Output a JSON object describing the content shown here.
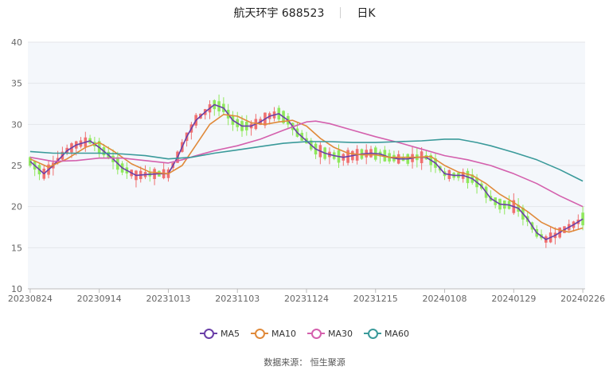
{
  "header": {
    "name_code": "航天环宇 688523",
    "period": "日K"
  },
  "source": "数据来源：  恒生聚源",
  "colors": {
    "up": "#f07070",
    "down": "#8fe85c",
    "ma5": "#6a3fa8",
    "ma10": "#e08a3a",
    "ma30": "#d460ad",
    "ma60": "#3a9a9a",
    "plot_bg": "#f4f7fb",
    "grid": "#e3e6ea"
  },
  "chart_data": {
    "type": "candlestick",
    "title": "航天环宇 688523 日K",
    "ylim": [
      10,
      40
    ],
    "yticks": [
      10,
      15,
      20,
      25,
      30,
      35,
      40
    ],
    "xticks": [
      "20230824",
      "20230914",
      "20231013",
      "20231103",
      "20231124",
      "20231215",
      "20240108",
      "20240129",
      "20240226"
    ],
    "xtick_index": [
      0,
      15,
      30,
      45,
      60,
      75,
      90,
      105,
      120
    ],
    "n_points": 121,
    "series": [
      {
        "name": "MA5",
        "key": "ma5",
        "points": [
          [
            0,
            25.5
          ],
          [
            3,
            24.0
          ],
          [
            5,
            25.0
          ],
          [
            8,
            26.8
          ],
          [
            10,
            27.5
          ],
          [
            13,
            28.0
          ],
          [
            15,
            27.2
          ],
          [
            18,
            25.8
          ],
          [
            20,
            24.7
          ],
          [
            23,
            23.8
          ],
          [
            25,
            23.9
          ],
          [
            28,
            24.0
          ],
          [
            30,
            24.0
          ],
          [
            32,
            26.0
          ],
          [
            34,
            28.5
          ],
          [
            36,
            30.5
          ],
          [
            38,
            31.5
          ],
          [
            40,
            32.4
          ],
          [
            42,
            32.0
          ],
          [
            44,
            30.5
          ],
          [
            46,
            29.8
          ],
          [
            48,
            29.8
          ],
          [
            50,
            30.3
          ],
          [
            52,
            31.0
          ],
          [
            54,
            31.3
          ],
          [
            56,
            30.5
          ],
          [
            58,
            29.0
          ],
          [
            60,
            28.0
          ],
          [
            62,
            27.0
          ],
          [
            64,
            26.5
          ],
          [
            66,
            26.2
          ],
          [
            68,
            26.0
          ],
          [
            70,
            26.2
          ],
          [
            72,
            26.4
          ],
          [
            74,
            26.5
          ],
          [
            76,
            26.4
          ],
          [
            78,
            26.0
          ],
          [
            80,
            25.8
          ],
          [
            82,
            25.8
          ],
          [
            84,
            26.0
          ],
          [
            86,
            26.0
          ],
          [
            88,
            25.3
          ],
          [
            90,
            24.0
          ],
          [
            92,
            23.8
          ],
          [
            94,
            23.8
          ],
          [
            96,
            23.4
          ],
          [
            98,
            22.5
          ],
          [
            100,
            21.0
          ],
          [
            102,
            20.3
          ],
          [
            104,
            20.2
          ],
          [
            106,
            19.8
          ],
          [
            108,
            18.5
          ],
          [
            110,
            16.8
          ],
          [
            112,
            16.0
          ],
          [
            114,
            16.5
          ],
          [
            116,
            17.2
          ],
          [
            118,
            17.8
          ],
          [
            120,
            18.5
          ]
        ]
      },
      {
        "name": "MA10",
        "key": "ma10",
        "points": [
          [
            0,
            25.8
          ],
          [
            4,
            24.8
          ],
          [
            8,
            25.8
          ],
          [
            12,
            27.2
          ],
          [
            15,
            27.8
          ],
          [
            18,
            26.8
          ],
          [
            22,
            25.2
          ],
          [
            26,
            24.2
          ],
          [
            30,
            24.0
          ],
          [
            33,
            25.0
          ],
          [
            36,
            27.5
          ],
          [
            39,
            30.0
          ],
          [
            42,
            31.2
          ],
          [
            45,
            31.0
          ],
          [
            48,
            30.2
          ],
          [
            51,
            30.0
          ],
          [
            54,
            30.3
          ],
          [
            57,
            30.5
          ],
          [
            60,
            29.8
          ],
          [
            63,
            28.3
          ],
          [
            66,
            27.2
          ],
          [
            69,
            26.5
          ],
          [
            72,
            26.3
          ],
          [
            75,
            26.3
          ],
          [
            78,
            26.0
          ],
          [
            81,
            26.0
          ],
          [
            84,
            26.0
          ],
          [
            87,
            26.1
          ],
          [
            90,
            25.0
          ],
          [
            93,
            24.2
          ],
          [
            96,
            23.8
          ],
          [
            99,
            22.8
          ],
          [
            102,
            21.5
          ],
          [
            105,
            20.5
          ],
          [
            108,
            19.4
          ],
          [
            111,
            18.1
          ],
          [
            114,
            17.3
          ],
          [
            117,
            16.9
          ],
          [
            120,
            17.4
          ]
        ]
      },
      {
        "name": "MA30",
        "key": "ma30",
        "points": [
          [
            0,
            26.0
          ],
          [
            5,
            25.5
          ],
          [
            10,
            25.6
          ],
          [
            15,
            25.9
          ],
          [
            20,
            25.9
          ],
          [
            25,
            25.6
          ],
          [
            30,
            25.3
          ],
          [
            33,
            25.7
          ],
          [
            36,
            26.2
          ],
          [
            40,
            26.8
          ],
          [
            45,
            27.4
          ],
          [
            50,
            28.2
          ],
          [
            55,
            29.3
          ],
          [
            60,
            30.3
          ],
          [
            62,
            30.4
          ],
          [
            65,
            30.1
          ],
          [
            70,
            29.3
          ],
          [
            75,
            28.5
          ],
          [
            80,
            27.8
          ],
          [
            85,
            27.0
          ],
          [
            90,
            26.2
          ],
          [
            95,
            25.7
          ],
          [
            100,
            25.0
          ],
          [
            105,
            24.0
          ],
          [
            110,
            22.8
          ],
          [
            115,
            21.3
          ],
          [
            120,
            20.0
          ]
        ]
      },
      {
        "name": "MA60",
        "key": "ma60",
        "points": [
          [
            0,
            26.7
          ],
          [
            5,
            26.5
          ],
          [
            10,
            26.5
          ],
          [
            15,
            26.5
          ],
          [
            20,
            26.4
          ],
          [
            25,
            26.2
          ],
          [
            30,
            25.8
          ],
          [
            35,
            26.0
          ],
          [
            40,
            26.5
          ],
          [
            45,
            26.9
          ],
          [
            50,
            27.3
          ],
          [
            55,
            27.7
          ],
          [
            60,
            27.9
          ],
          [
            65,
            27.9
          ],
          [
            70,
            27.8
          ],
          [
            75,
            27.8
          ],
          [
            80,
            27.9
          ],
          [
            85,
            28.0
          ],
          [
            90,
            28.2
          ],
          [
            93,
            28.2
          ],
          [
            97,
            27.8
          ],
          [
            100,
            27.4
          ],
          [
            105,
            26.6
          ],
          [
            110,
            25.7
          ],
          [
            115,
            24.5
          ],
          [
            120,
            23.1
          ]
        ]
      }
    ]
  },
  "legend": [
    {
      "label": "MA5",
      "key": "ma5"
    },
    {
      "label": "MA10",
      "key": "ma10"
    },
    {
      "label": "MA30",
      "key": "ma30"
    },
    {
      "label": "MA60",
      "key": "ma60"
    }
  ]
}
